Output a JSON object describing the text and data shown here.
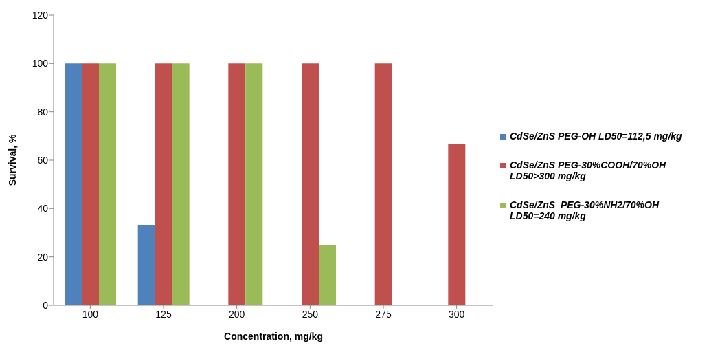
{
  "chart_data": {
    "type": "bar",
    "xlabel": "Concentration, mg/kg",
    "ylabel": "Survival, %",
    "categories": [
      "100",
      "125",
      "200",
      "250",
      "275",
      "300"
    ],
    "series": [
      {
        "name": "CdSe/ZnS PEG-OH LD50=112,5 mg/kg",
        "color": "#4f81bd",
        "values": [
          100,
          33.3,
          0,
          0,
          0,
          0
        ]
      },
      {
        "name": "CdSe/ZnS PEG-30%COOH/70%OH LD50>300 mg/kg",
        "color": "#c0504d",
        "values": [
          100,
          100,
          100,
          100,
          100,
          66.7
        ]
      },
      {
        "name": "CdSe/ZnS  PEG-30%NH2/70%OH LD50=240 mg/kg",
        "color": "#9bbb59",
        "values": [
          100,
          100,
          100,
          25,
          0,
          0
        ]
      }
    ],
    "ylim": [
      0,
      120
    ],
    "yticks": [
      0,
      20,
      40,
      60,
      80,
      100,
      120
    ],
    "grid": false,
    "legend": "right"
  }
}
